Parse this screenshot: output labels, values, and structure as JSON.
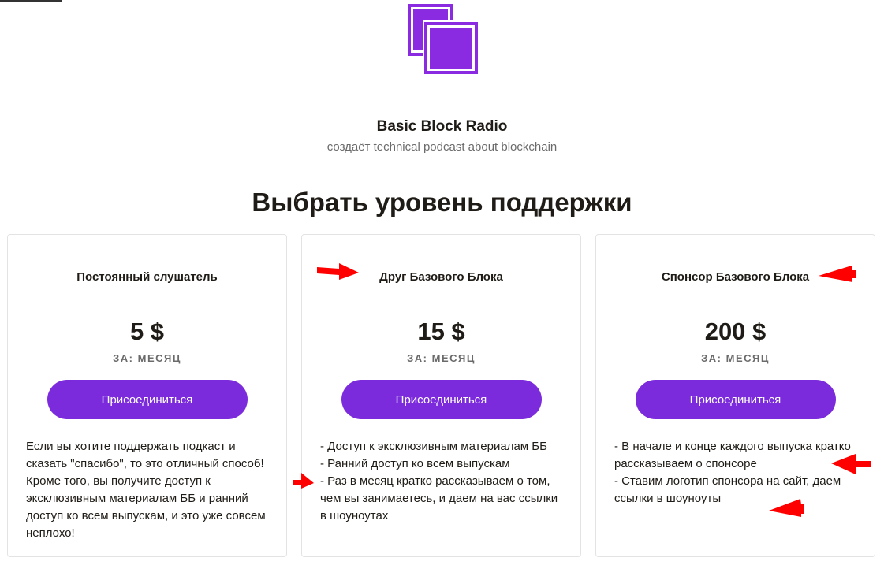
{
  "creator": {
    "name": "Basic Block Radio",
    "tagline": "создаёт technical podcast about blockchain"
  },
  "heading": "Выбрать уровень поддержки",
  "brand_color": "#7b2bdc",
  "tiers": [
    {
      "name": "Постоянный слушатель",
      "price": "5 $",
      "period": "ЗА: МЕСЯЦ",
      "button": "Присоединиться",
      "description": "Если вы хотите поддержать подкаст и сказать \"спасибо\", то это отличный способ! Кроме того, вы получите доступ к эксклюзивным материалам ББ и ранний доступ ко всем выпускам, и это уже совсем неплохо!"
    },
    {
      "name": "Друг Базового Блока",
      "price": "15 $",
      "period": "ЗА: МЕСЯЦ",
      "button": "Присоединиться",
      "description": "- Доступ к эксклюзивным материалам ББ\n- Ранний доступ ко всем выпускам\n- Раз в месяц кратко рассказываем о том, чем вы занимаетесь, и даем на вас ссылки в шоуноутах"
    },
    {
      "name": "Спонсор Базового Блока",
      "price": "200 $",
      "period": "ЗА: МЕСЯЦ",
      "button": "Присоединиться",
      "description": "- В начале и конце каждого выпуска кратко рассказываем о спонсоре\n- Ставим логотип спонсора на сайт, даем ссылки в шоуноуты"
    }
  ]
}
